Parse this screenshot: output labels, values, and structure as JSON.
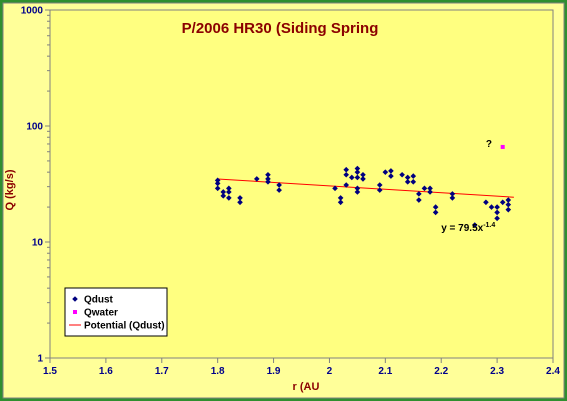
{
  "chart_data": {
    "type": "scatter",
    "title": "P/2006 HR30 (Siding Spring",
    "xlabel": "r (AU",
    "ylabel": "Q (kg/s)",
    "xlim": [
      1.5,
      2.4
    ],
    "ylim": [
      1,
      1000
    ],
    "yscale": "log",
    "x_ticks": [
      "1.5",
      "1.6",
      "1.7",
      "1.8",
      "1.9",
      "2",
      "2.1",
      "2.2",
      "2.3",
      "2.4"
    ],
    "y_ticks": [
      "1",
      "10",
      "100",
      "1000"
    ],
    "grid": false,
    "legend_position": "bottom-left",
    "series": [
      {
        "name": "Qdust",
        "marker": "diamond",
        "color": "#00007f",
        "points": [
          [
            1.8,
            34
          ],
          [
            1.8,
            32
          ],
          [
            1.8,
            29
          ],
          [
            1.81,
            27
          ],
          [
            1.81,
            25
          ],
          [
            1.82,
            24
          ],
          [
            1.82,
            27
          ],
          [
            1.82,
            29
          ],
          [
            1.84,
            24
          ],
          [
            1.84,
            22
          ],
          [
            1.87,
            35
          ],
          [
            1.89,
            38
          ],
          [
            1.89,
            35
          ],
          [
            1.89,
            33
          ],
          [
            1.91,
            31
          ],
          [
            1.91,
            28
          ],
          [
            2.01,
            29
          ],
          [
            2.02,
            24
          ],
          [
            2.02,
            22
          ],
          [
            2.03,
            42
          ],
          [
            2.03,
            38
          ],
          [
            2.03,
            31
          ],
          [
            2.04,
            36
          ],
          [
            2.05,
            43
          ],
          [
            2.05,
            40
          ],
          [
            2.05,
            36
          ],
          [
            2.05,
            29
          ],
          [
            2.05,
            27
          ],
          [
            2.06,
            38
          ],
          [
            2.06,
            35
          ],
          [
            2.09,
            31
          ],
          [
            2.09,
            28
          ],
          [
            2.1,
            40
          ],
          [
            2.11,
            37
          ],
          [
            2.11,
            41
          ],
          [
            2.13,
            38
          ],
          [
            2.14,
            36
          ],
          [
            2.14,
            33
          ],
          [
            2.15,
            33
          ],
          [
            2.15,
            37
          ],
          [
            2.16,
            26
          ],
          [
            2.16,
            23
          ],
          [
            2.17,
            29
          ],
          [
            2.18,
            29
          ],
          [
            2.18,
            27
          ],
          [
            2.19,
            20
          ],
          [
            2.19,
            18
          ],
          [
            2.22,
            26
          ],
          [
            2.22,
            24
          ],
          [
            2.26,
            14
          ],
          [
            2.28,
            22
          ],
          [
            2.29,
            20
          ],
          [
            2.3,
            20
          ],
          [
            2.3,
            18
          ],
          [
            2.3,
            16
          ],
          [
            2.31,
            22
          ],
          [
            2.32,
            23
          ],
          [
            2.32,
            21
          ],
          [
            2.32,
            19
          ]
        ]
      },
      {
        "name": "Qwater",
        "marker": "square",
        "color": "#ff00ff",
        "points": [
          [
            2.31,
            66
          ]
        ]
      },
      {
        "name": "Potential (Qdust)",
        "type": "line",
        "color": "#ff0000",
        "fit": {
          "a": 79.5,
          "b": -1.4,
          "x_range": [
            1.8,
            2.33
          ]
        }
      }
    ],
    "annotations": [
      {
        "text": "y = 79.5x",
        "superscript": "-1.4",
        "x": 2.2,
        "y": 12.5
      },
      {
        "text": "?",
        "x": 2.28,
        "y": 66
      }
    ]
  }
}
